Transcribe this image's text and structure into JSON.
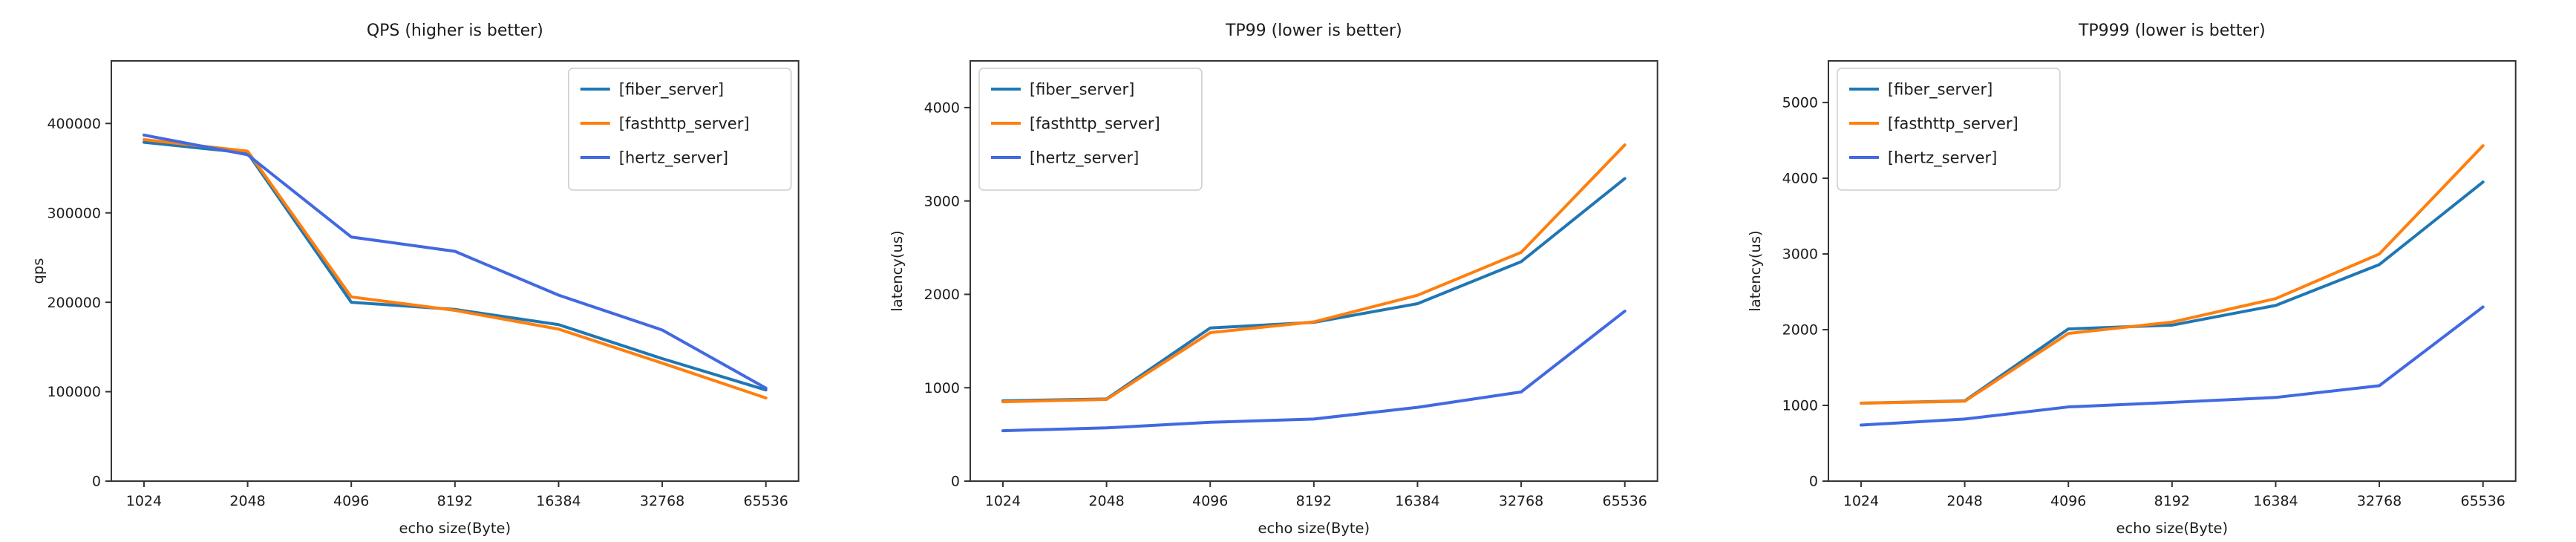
{
  "figure": {
    "background": "#ffffff",
    "text_color": "#1c1c1c",
    "axis_color": "#333333",
    "legend_border_color": "#cccccc",
    "series_colors": {
      "fiber_server": "#1f77b4",
      "fasthttp_server": "#ff7f0e",
      "hertz_server": "#4169e1"
    }
  },
  "chart_data": [
    {
      "type": "line",
      "title": "QPS (higher is better)",
      "xlabel": "echo size(Byte)",
      "ylabel": "qps",
      "categories": [
        "1024",
        "2048",
        "4096",
        "8192",
        "16384",
        "32768",
        "65536"
      ],
      "ylim": [
        0,
        470000
      ],
      "yticks": [
        0,
        100000,
        200000,
        300000,
        400000
      ],
      "grid": false,
      "legend_position": "upper-right",
      "series": [
        {
          "name": "[fiber_server]",
          "color": "#1f77b4",
          "values": [
            379000,
            367000,
            200000,
            192000,
            175000,
            137000,
            102000
          ]
        },
        {
          "name": "[fasthttp_server]",
          "color": "#ff7f0e",
          "values": [
            382000,
            369000,
            206000,
            191000,
            170000,
            132000,
            93000
          ]
        },
        {
          "name": "[hertz_server]",
          "color": "#4169e1",
          "values": [
            387000,
            365000,
            273000,
            257000,
            208000,
            169000,
            104000
          ]
        }
      ]
    },
    {
      "type": "line",
      "title": "TP99 (lower is better)",
      "xlabel": "echo size(Byte)",
      "ylabel": "latency(us)",
      "categories": [
        "1024",
        "2048",
        "4096",
        "8192",
        "16384",
        "32768",
        "65536"
      ],
      "ylim": [
        0,
        4500
      ],
      "yticks": [
        0,
        1000,
        2000,
        3000,
        4000
      ],
      "grid": false,
      "legend_position": "upper-left",
      "series": [
        {
          "name": "[fiber_server]",
          "color": "#1f77b4",
          "values": [
            860,
            880,
            1640,
            1700,
            1900,
            2350,
            3240
          ]
        },
        {
          "name": "[fasthttp_server]",
          "color": "#ff7f0e",
          "values": [
            850,
            875,
            1590,
            1705,
            1990,
            2450,
            3600
          ]
        },
        {
          "name": "[hertz_server]",
          "color": "#4169e1",
          "values": [
            540,
            570,
            630,
            665,
            790,
            955,
            1820
          ]
        }
      ]
    },
    {
      "type": "line",
      "title": "TP999 (lower is better)",
      "xlabel": "echo size(Byte)",
      "ylabel": "latency(us)",
      "categories": [
        "1024",
        "2048",
        "4096",
        "8192",
        "16384",
        "32768",
        "65536"
      ],
      "ylim": [
        0,
        5550
      ],
      "yticks": [
        0,
        1000,
        2000,
        3000,
        4000,
        5000
      ],
      "grid": false,
      "legend_position": "upper-left",
      "series": [
        {
          "name": "[fiber_server]",
          "color": "#1f77b4",
          "values": [
            1030,
            1060,
            2010,
            2060,
            2320,
            2860,
            3950
          ]
        },
        {
          "name": "[fasthttp_server]",
          "color": "#ff7f0e",
          "values": [
            1030,
            1055,
            1950,
            2100,
            2410,
            3000,
            4430
          ]
        },
        {
          "name": "[hertz_server]",
          "color": "#4169e1",
          "values": [
            740,
            820,
            980,
            1040,
            1105,
            1260,
            2300
          ]
        }
      ]
    }
  ]
}
